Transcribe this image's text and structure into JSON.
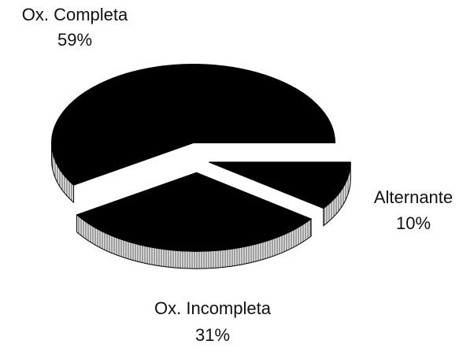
{
  "chart_data": {
    "type": "pie",
    "categories": [
      "Ox. Completa",
      "Ox. Incompleta",
      "Alternante"
    ],
    "values": [
      59,
      31,
      10
    ],
    "value_labels": [
      "59%",
      "31%",
      "10%"
    ],
    "colors": [
      "#000000",
      "#000000",
      "#000000"
    ]
  }
}
